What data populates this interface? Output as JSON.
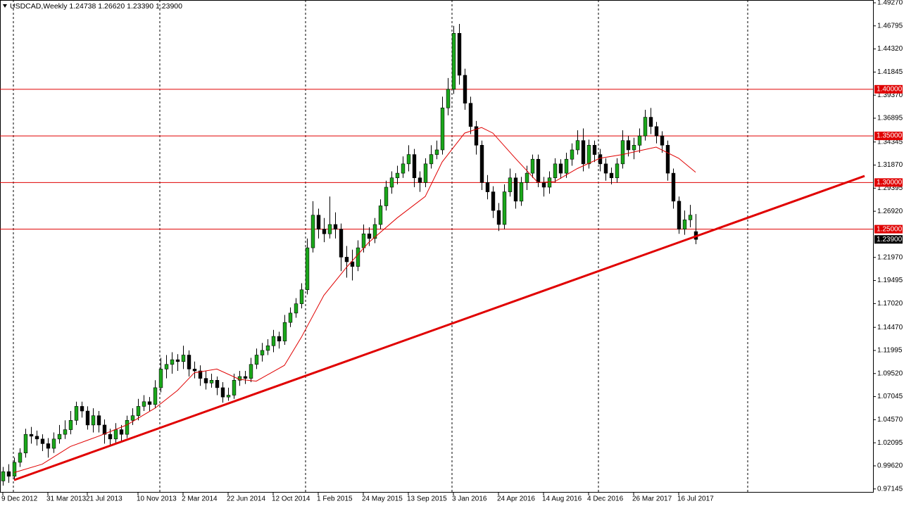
{
  "chart_data": {
    "type": "candlestick",
    "title": "USDCAD,Weekly  1.24738 1.26620 1.23390 1.23900",
    "up_color": "#1aa81a",
    "down_color": "#000000",
    "ma_color": "#e00000",
    "level_color": "#e00000",
    "trend_color": "#e00000",
    "xlim": [
      -0.5,
      154.5
    ],
    "ylim": [
      0.9675,
      1.4957
    ],
    "yticks": [
      {
        "value": 1.4927,
        "label": "1.49270"
      },
      {
        "value": 1.46795,
        "label": "1.46795"
      },
      {
        "value": 1.4432,
        "label": "1.44320"
      },
      {
        "value": 1.41845,
        "label": "1.41845"
      },
      {
        "value": 1.3937,
        "label": "1.39370"
      },
      {
        "value": 1.36895,
        "label": "1.36895"
      },
      {
        "value": 1.34345,
        "label": "1.34345"
      },
      {
        "value": 1.3187,
        "label": "1.31870"
      },
      {
        "value": 1.29395,
        "label": "1.29395"
      },
      {
        "value": 1.2692,
        "label": "1.26920"
      },
      {
        "value": 1.2197,
        "label": "1.21970"
      },
      {
        "value": 1.19495,
        "label": "1.19495"
      },
      {
        "value": 1.1702,
        "label": "1.17020"
      },
      {
        "value": 1.1447,
        "label": "1.14470"
      },
      {
        "value": 1.11995,
        "label": "1.11995"
      },
      {
        "value": 1.0952,
        "label": "1.09520"
      },
      {
        "value": 1.07045,
        "label": "1.07045"
      },
      {
        "value": 1.0457,
        "label": "1.04570"
      },
      {
        "value": 1.02095,
        "label": "1.02095"
      },
      {
        "value": 0.9962,
        "label": "0.99620"
      },
      {
        "value": 0.97145,
        "label": "0.97145"
      }
    ],
    "xticks": [
      {
        "value": 0,
        "label": "9 Dec 2012"
      },
      {
        "value": 8,
        "label": "31 Mar 2013"
      },
      {
        "value": 15,
        "label": "21 Jul 2013"
      },
      {
        "value": 24,
        "label": "10 Nov 2013"
      },
      {
        "value": 32,
        "label": "2 Mar 2014"
      },
      {
        "value": 40,
        "label": "22 Jun 2014"
      },
      {
        "value": 48,
        "label": "12 Oct 2014"
      },
      {
        "value": 56,
        "label": "1 Feb 2015"
      },
      {
        "value": 64,
        "label": "24 May 2015"
      },
      {
        "value": 72,
        "label": "13 Sep 2015"
      },
      {
        "value": 80,
        "label": "3 Jan 2016"
      },
      {
        "value": 88,
        "label": "24 Apr 2016"
      },
      {
        "value": 96,
        "label": "14 Aug 2016"
      },
      {
        "value": 104,
        "label": "4 Dec 2016"
      },
      {
        "value": 112,
        "label": "26 Mar 2017"
      },
      {
        "value": 120,
        "label": "16 Jul 2017"
      }
    ],
    "levels": [
      {
        "value": 1.4,
        "label": "1.40000"
      },
      {
        "value": 1.35,
        "label": "1.35000"
      },
      {
        "value": 1.3,
        "label": "1.30000"
      },
      {
        "value": 1.25,
        "label": "1.25000"
      }
    ],
    "last_price": {
      "value": 1.239,
      "label": "1.23900"
    },
    "trendline": {
      "x": [
        2,
        153
      ],
      "y": [
        0.981,
        1.307
      ]
    },
    "ma": {
      "x": [
        2,
        7,
        12,
        17,
        22,
        27,
        31,
        34,
        38,
        42,
        45,
        50,
        53,
        57,
        61,
        65,
        70,
        75,
        78,
        82,
        85,
        87,
        91,
        95,
        98,
        102,
        106,
        110,
        113,
        116,
        120,
        123
      ],
      "values": [
        0.989,
        0.998,
        1.017,
        1.028,
        1.04,
        1.058,
        1.077,
        1.096,
        1.1,
        1.089,
        1.087,
        1.104,
        1.134,
        1.179,
        1.209,
        1.236,
        1.262,
        1.285,
        1.322,
        1.353,
        1.359,
        1.353,
        1.326,
        1.3,
        1.301,
        1.315,
        1.326,
        1.33,
        1.334,
        1.338,
        1.326,
        1.311
      ]
    },
    "ohlc": [
      [
        0.98,
        0.995,
        0.975,
        0.99
      ],
      [
        0.99,
        0.998,
        0.978,
        0.985
      ],
      [
        0.985,
        1.005,
        0.982,
        1.0
      ],
      [
        1.0,
        1.015,
        0.995,
        1.01
      ],
      [
        1.01,
        1.036,
        1.005,
        1.03
      ],
      [
        1.03,
        1.038,
        1.02,
        1.028
      ],
      [
        1.028,
        1.034,
        1.018,
        1.025
      ],
      [
        1.025,
        1.03,
        1.012,
        1.02
      ],
      [
        1.02,
        1.026,
        1.005,
        1.015
      ],
      [
        1.015,
        1.032,
        1.01,
        1.025
      ],
      [
        1.025,
        1.04,
        1.02,
        1.03
      ],
      [
        1.03,
        1.045,
        1.025,
        1.035
      ],
      [
        1.035,
        1.055,
        1.03,
        1.045
      ],
      [
        1.045,
        1.065,
        1.04,
        1.06
      ],
      [
        1.06,
        1.065,
        1.048,
        1.055
      ],
      [
        1.055,
        1.06,
        1.035,
        1.04
      ],
      [
        1.04,
        1.058,
        1.032,
        1.05
      ],
      [
        1.05,
        1.055,
        1.032,
        1.04
      ],
      [
        1.04,
        1.046,
        1.02,
        1.03
      ],
      [
        1.03,
        1.036,
        1.018,
        1.025
      ],
      [
        1.025,
        1.042,
        1.02,
        1.035
      ],
      [
        1.035,
        1.04,
        1.022,
        1.03
      ],
      [
        1.03,
        1.05,
        1.026,
        1.045
      ],
      [
        1.045,
        1.058,
        1.04,
        1.05
      ],
      [
        1.05,
        1.068,
        1.045,
        1.06
      ],
      [
        1.06,
        1.072,
        1.055,
        1.065
      ],
      [
        1.065,
        1.07,
        1.055,
        1.062
      ],
      [
        1.062,
        1.088,
        1.058,
        1.08
      ],
      [
        1.08,
        1.112,
        1.075,
        1.1
      ],
      [
        1.1,
        1.115,
        1.09,
        1.105
      ],
      [
        1.105,
        1.118,
        1.095,
        1.11
      ],
      [
        1.11,
        1.116,
        1.098,
        1.108
      ],
      [
        1.108,
        1.125,
        1.1,
        1.115
      ],
      [
        1.115,
        1.12,
        1.092,
        1.1
      ],
      [
        1.1,
        1.108,
        1.09,
        1.098
      ],
      [
        1.098,
        1.104,
        1.082,
        1.09
      ],
      [
        1.09,
        1.098,
        1.078,
        1.085
      ],
      [
        1.085,
        1.095,
        1.08,
        1.088
      ],
      [
        1.088,
        1.092,
        1.072,
        1.08
      ],
      [
        1.08,
        1.086,
        1.064,
        1.07
      ],
      [
        1.07,
        1.08,
        1.066,
        1.072
      ],
      [
        1.072,
        1.095,
        1.068,
        1.088
      ],
      [
        1.088,
        1.098,
        1.082,
        1.092
      ],
      [
        1.092,
        1.098,
        1.084,
        1.09
      ],
      [
        1.09,
        1.112,
        1.086,
        1.105
      ],
      [
        1.105,
        1.122,
        1.1,
        1.115
      ],
      [
        1.115,
        1.128,
        1.108,
        1.12
      ],
      [
        1.12,
        1.132,
        1.115,
        1.125
      ],
      [
        1.125,
        1.142,
        1.118,
        1.135
      ],
      [
        1.135,
        1.14,
        1.122,
        1.13
      ],
      [
        1.13,
        1.158,
        1.126,
        1.15
      ],
      [
        1.15,
        1.166,
        1.145,
        1.16
      ],
      [
        1.16,
        1.176,
        1.155,
        1.17
      ],
      [
        1.17,
        1.192,
        1.165,
        1.185
      ],
      [
        1.185,
        1.24,
        1.18,
        1.23
      ],
      [
        1.23,
        1.28,
        1.225,
        1.265
      ],
      [
        1.265,
        1.272,
        1.24,
        1.25
      ],
      [
        1.25,
        1.262,
        1.236,
        1.245
      ],
      [
        1.245,
        1.285,
        1.24,
        1.255
      ],
      [
        1.255,
        1.268,
        1.24,
        1.25
      ],
      [
        1.25,
        1.256,
        1.205,
        1.22
      ],
      [
        1.22,
        1.232,
        1.198,
        1.215
      ],
      [
        1.215,
        1.228,
        1.195,
        1.21
      ],
      [
        1.21,
        1.238,
        1.205,
        1.23
      ],
      [
        1.23,
        1.255,
        1.225,
        1.245
      ],
      [
        1.245,
        1.252,
        1.232,
        1.24
      ],
      [
        1.24,
        1.262,
        1.235,
        1.255
      ],
      [
        1.255,
        1.282,
        1.25,
        1.275
      ],
      [
        1.275,
        1.302,
        1.27,
        1.295
      ],
      [
        1.295,
        1.312,
        1.288,
        1.305
      ],
      [
        1.305,
        1.318,
        1.298,
        1.31
      ],
      [
        1.31,
        1.328,
        1.305,
        1.32
      ],
      [
        1.32,
        1.34,
        1.312,
        1.33
      ],
      [
        1.33,
        1.336,
        1.295,
        1.305
      ],
      [
        1.305,
        1.312,
        1.29,
        1.3
      ],
      [
        1.3,
        1.326,
        1.295,
        1.32
      ],
      [
        1.32,
        1.34,
        1.315,
        1.33
      ],
      [
        1.33,
        1.345,
        1.325,
        1.335
      ],
      [
        1.335,
        1.392,
        1.33,
        1.38
      ],
      [
        1.38,
        1.412,
        1.372,
        1.4
      ],
      [
        1.4,
        1.468,
        1.395,
        1.46
      ],
      [
        1.46,
        1.47,
        1.405,
        1.415
      ],
      [
        1.415,
        1.422,
        1.378,
        1.385
      ],
      [
        1.385,
        1.392,
        1.352,
        1.36
      ],
      [
        1.36,
        1.366,
        1.33,
        1.34
      ],
      [
        1.34,
        1.345,
        1.292,
        1.3
      ],
      [
        1.3,
        1.308,
        1.282,
        1.29
      ],
      [
        1.29,
        1.296,
        1.262,
        1.27
      ],
      [
        1.27,
        1.278,
        1.248,
        1.255
      ],
      [
        1.255,
        1.298,
        1.25,
        1.29
      ],
      [
        1.29,
        1.315,
        1.285,
        1.305
      ],
      [
        1.305,
        1.31,
        1.272,
        1.28
      ],
      [
        1.28,
        1.306,
        1.275,
        1.3
      ],
      [
        1.3,
        1.318,
        1.292,
        1.31
      ],
      [
        1.31,
        1.33,
        1.305,
        1.325
      ],
      [
        1.325,
        1.33,
        1.295,
        1.3
      ],
      [
        1.3,
        1.306,
        1.285,
        1.295
      ],
      [
        1.295,
        1.312,
        1.288,
        1.305
      ],
      [
        1.305,
        1.326,
        1.3,
        1.32
      ],
      [
        1.32,
        1.325,
        1.304,
        1.31
      ],
      [
        1.31,
        1.332,
        1.305,
        1.325
      ],
      [
        1.325,
        1.342,
        1.318,
        1.335
      ],
      [
        1.335,
        1.356,
        1.33,
        1.345
      ],
      [
        1.345,
        1.358,
        1.312,
        1.32
      ],
      [
        1.32,
        1.346,
        1.315,
        1.34
      ],
      [
        1.34,
        1.345,
        1.322,
        1.33
      ],
      [
        1.33,
        1.336,
        1.312,
        1.32
      ],
      [
        1.32,
        1.326,
        1.302,
        1.31
      ],
      [
        1.31,
        1.316,
        1.298,
        1.305
      ],
      [
        1.305,
        1.326,
        1.3,
        1.32
      ],
      [
        1.32,
        1.356,
        1.315,
        1.345
      ],
      [
        1.345,
        1.35,
        1.328,
        1.335
      ],
      [
        1.335,
        1.348,
        1.325,
        1.34
      ],
      [
        1.34,
        1.358,
        1.332,
        1.35
      ],
      [
        1.35,
        1.378,
        1.345,
        1.37
      ],
      [
        1.37,
        1.38,
        1.352,
        1.36
      ],
      [
        1.36,
        1.365,
        1.342,
        1.35
      ],
      [
        1.35,
        1.355,
        1.332,
        1.34
      ],
      [
        1.34,
        1.345,
        1.302,
        1.31
      ],
      [
        1.31,
        1.315,
        1.272,
        1.28
      ],
      [
        1.28,
        1.285,
        1.245,
        1.25
      ],
      [
        1.25,
        1.27,
        1.244,
        1.26
      ],
      [
        1.26,
        1.276,
        1.252,
        1.265
      ],
      [
        1.24738,
        1.2662,
        1.2339,
        1.239
      ]
    ]
  }
}
